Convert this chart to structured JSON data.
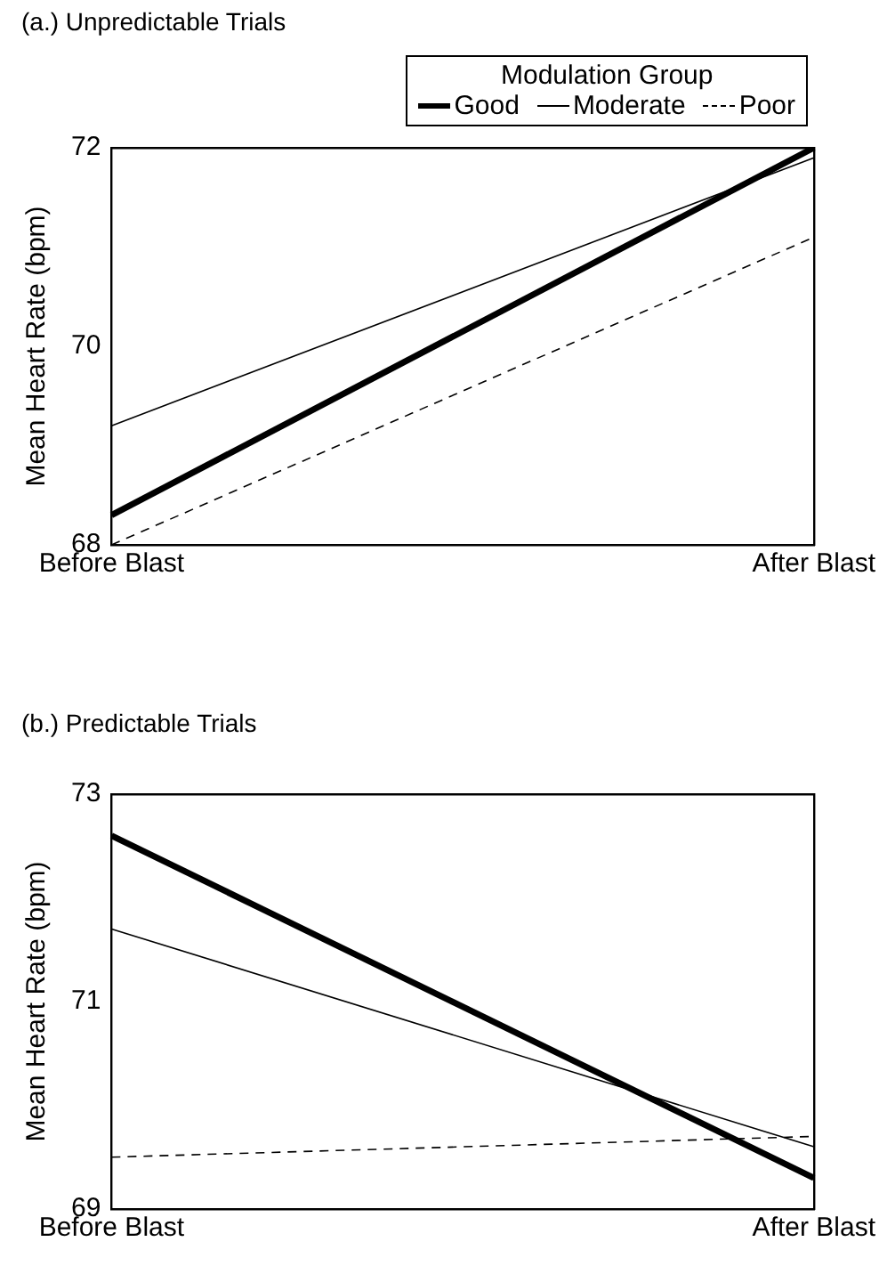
{
  "chart_data": [
    {
      "type": "line",
      "title": "(a.) Unpredictable Trials",
      "ylabel": "Mean Heart Rate (bpm)",
      "categories": [
        "Before Blast",
        "After Blast"
      ],
      "ylim": [
        68,
        72
      ],
      "yticks": [
        68,
        70,
        72
      ],
      "legend": "top right",
      "legend_title": "Modulation Group",
      "marker": "none",
      "series": [
        {
          "name": "Good",
          "color": "#000000",
          "line_style": "solid",
          "values": [
            68.3,
            72.0
          ]
        },
        {
          "name": "Moderate",
          "color": "#000000",
          "line_style": "solid",
          "values": [
            69.2,
            71.9
          ]
        },
        {
          "name": "Poor",
          "color": "#000000",
          "line_style": "dashed",
          "values": [
            68.0,
            71.1
          ]
        }
      ]
    },
    {
      "type": "line",
      "title": "(b.) Predictable Trials",
      "ylabel": "Mean Heart Rate (bpm)",
      "categories": [
        "Before Blast",
        "After Blast"
      ],
      "ylim": [
        69,
        73
      ],
      "yticks": [
        69,
        71,
        73
      ],
      "legend": false,
      "marker": "none",
      "series": [
        {
          "color": "#000000",
          "line_style": "solid",
          "values": [
            72.6,
            69.3
          ]
        },
        {
          "color": "#000000",
          "line_style": "solid",
          "values": [
            71.7,
            69.6
          ]
        },
        {
          "color": "#000000",
          "line_style": "dashed",
          "values": [
            69.5,
            69.7
          ]
        }
      ]
    }
  ]
}
